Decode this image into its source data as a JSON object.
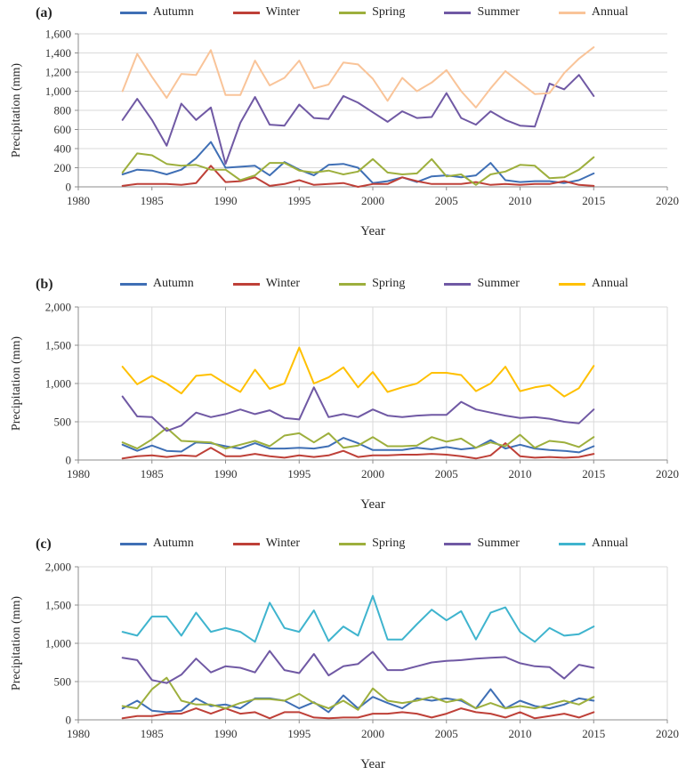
{
  "figure": {
    "panels": [
      {
        "label": "(a)",
        "ylabel": "Precipitation (mm)",
        "xlabel": "Year"
      },
      {
        "label": "(b)",
        "ylabel": "Precipitation (mm)",
        "xlabel": "Year"
      },
      {
        "label": "(c)",
        "ylabel": "Precipitation (mm)",
        "xlabel": "Year"
      }
    ]
  },
  "chart_data": [
    {
      "type": "line",
      "title": "(a)",
      "xlabel": "Year",
      "ylabel": "Precipitation (mm)",
      "xlim": [
        1980,
        2020
      ],
      "xticks": [
        1980,
        1985,
        1990,
        1995,
        2000,
        2005,
        2010,
        2015,
        2020
      ],
      "ylim": [
        0,
        1600
      ],
      "yticks": [
        0,
        200,
        400,
        600,
        800,
        1000,
        1200,
        1400,
        1600
      ],
      "ytick_labels": [
        "0",
        "200",
        "400",
        "600",
        "800",
        "1,000",
        "1,200",
        "1,400",
        "1,600"
      ],
      "grid": "horizontal",
      "legend_position": "top",
      "x": [
        1983,
        1984,
        1985,
        1986,
        1987,
        1988,
        1989,
        1990,
        1991,
        1992,
        1993,
        1994,
        1995,
        1996,
        1997,
        1998,
        1999,
        2000,
        2001,
        2002,
        2003,
        2004,
        2005,
        2006,
        2007,
        2008,
        2009,
        2010,
        2011,
        2012,
        2013,
        2014,
        2015
      ],
      "series": [
        {
          "name": "Autumn",
          "color": "#3F6FB5",
          "values": [
            130,
            180,
            170,
            130,
            180,
            300,
            470,
            200,
            210,
            220,
            120,
            260,
            180,
            120,
            230,
            240,
            200,
            40,
            60,
            100,
            50,
            110,
            120,
            100,
            120,
            250,
            70,
            50,
            60,
            60,
            40,
            70,
            140
          ]
        },
        {
          "name": "Winter",
          "color": "#BE4038",
          "values": [
            10,
            30,
            30,
            30,
            20,
            40,
            220,
            50,
            60,
            100,
            10,
            30,
            70,
            20,
            30,
            40,
            0,
            30,
            30,
            100,
            60,
            30,
            30,
            30,
            50,
            20,
            30,
            20,
            30,
            30,
            60,
            20,
            10
          ]
        },
        {
          "name": "Spring",
          "color": "#9DAF3D",
          "values": [
            150,
            350,
            330,
            240,
            220,
            230,
            180,
            180,
            70,
            120,
            250,
            250,
            170,
            150,
            170,
            130,
            160,
            290,
            150,
            130,
            140,
            290,
            110,
            130,
            20,
            130,
            160,
            230,
            220,
            90,
            100,
            180,
            310
          ]
        },
        {
          "name": "Summer",
          "color": "#7059A4",
          "values": [
            700,
            920,
            700,
            430,
            870,
            700,
            830,
            240,
            670,
            940,
            650,
            640,
            860,
            720,
            710,
            950,
            880,
            780,
            680,
            790,
            720,
            730,
            980,
            720,
            650,
            790,
            700,
            640,
            630,
            1080,
            1020,
            1170,
            950
          ]
        },
        {
          "name": "Annual",
          "color": "#F9C499",
          "values": [
            1000,
            1390,
            1150,
            930,
            1180,
            1170,
            1430,
            960,
            960,
            1320,
            1060,
            1140,
            1320,
            1030,
            1070,
            1300,
            1280,
            1130,
            900,
            1140,
            1000,
            1090,
            1220,
            1000,
            830,
            1030,
            1210,
            1090,
            970,
            980,
            1190,
            1340,
            1460
          ]
        }
      ]
    },
    {
      "type": "line",
      "title": "(b)",
      "xlabel": "Year",
      "ylabel": "Precipitation (mm)",
      "xlim": [
        1980,
        2020
      ],
      "xticks": [
        1980,
        1985,
        1990,
        1995,
        2000,
        2005,
        2010,
        2015,
        2020
      ],
      "ylim": [
        0,
        2000
      ],
      "yticks": [
        0,
        500,
        1000,
        1500,
        2000
      ],
      "ytick_labels": [
        "0",
        "500",
        "1,000",
        "1,500",
        "2,000"
      ],
      "grid": "both",
      "legend_position": "top",
      "x": [
        1983,
        1984,
        1985,
        1986,
        1987,
        1988,
        1989,
        1990,
        1991,
        1992,
        1993,
        1994,
        1995,
        1996,
        1997,
        1998,
        1999,
        2000,
        2001,
        2002,
        2003,
        2004,
        2005,
        2006,
        2007,
        2008,
        2009,
        2010,
        2011,
        2012,
        2013,
        2014,
        2015
      ],
      "series": [
        {
          "name": "Autumn",
          "color": "#3F6FB5",
          "values": [
            200,
            120,
            190,
            120,
            110,
            230,
            220,
            180,
            150,
            220,
            150,
            150,
            160,
            150,
            180,
            290,
            220,
            130,
            130,
            130,
            160,
            140,
            170,
            140,
            160,
            260,
            150,
            200,
            150,
            130,
            120,
            100,
            180
          ]
        },
        {
          "name": "Winter",
          "color": "#BE4038",
          "values": [
            20,
            50,
            60,
            40,
            60,
            50,
            160,
            50,
            50,
            80,
            50,
            30,
            60,
            40,
            60,
            120,
            40,
            60,
            60,
            70,
            70,
            80,
            70,
            50,
            20,
            60,
            220,
            50,
            30,
            40,
            30,
            40,
            80
          ]
        },
        {
          "name": "Spring",
          "color": "#9DAF3D",
          "values": [
            230,
            150,
            270,
            420,
            250,
            240,
            230,
            150,
            200,
            250,
            180,
            320,
            350,
            230,
            350,
            160,
            190,
            300,
            180,
            180,
            190,
            300,
            240,
            280,
            160,
            230,
            180,
            330,
            160,
            250,
            230,
            170,
            300
          ]
        },
        {
          "name": "Summer",
          "color": "#7059A4",
          "values": [
            830,
            570,
            560,
            380,
            450,
            620,
            560,
            600,
            660,
            600,
            650,
            550,
            530,
            950,
            560,
            600,
            560,
            660,
            580,
            560,
            580,
            590,
            590,
            760,
            660,
            620,
            580,
            550,
            560,
            540,
            500,
            480,
            660
          ]
        },
        {
          "name": "Annual",
          "color": "#FFC000",
          "values": [
            1220,
            990,
            1100,
            1000,
            870,
            1100,
            1120,
            1000,
            890,
            1180,
            930,
            1000,
            1470,
            1000,
            1080,
            1210,
            950,
            1150,
            890,
            950,
            1000,
            1140,
            1140,
            1110,
            900,
            1000,
            1220,
            900,
            950,
            980,
            830,
            940,
            1230
          ]
        }
      ]
    },
    {
      "type": "line",
      "title": "(c)",
      "xlabel": "Year",
      "ylabel": "Precipitation (mm)",
      "xlim": [
        1980,
        2020
      ],
      "xticks": [
        1980,
        1985,
        1990,
        1995,
        2000,
        2005,
        2010,
        2015,
        2020
      ],
      "ylim": [
        0,
        2000
      ],
      "yticks": [
        0,
        500,
        1000,
        1500,
        2000
      ],
      "ytick_labels": [
        "0",
        "500",
        "1,000",
        "1,500",
        "2,000"
      ],
      "grid": "both",
      "legend_position": "top",
      "x": [
        1983,
        1984,
        1985,
        1986,
        1987,
        1988,
        1989,
        1990,
        1991,
        1992,
        1993,
        1994,
        1995,
        1996,
        1997,
        1998,
        1999,
        2000,
        2001,
        2002,
        2003,
        2004,
        2005,
        2006,
        2007,
        2008,
        2009,
        2010,
        2011,
        2012,
        2013,
        2014,
        2015
      ],
      "series": [
        {
          "name": "Autumn",
          "color": "#3F6FB5",
          "values": [
            150,
            250,
            120,
            100,
            120,
            280,
            180,
            200,
            150,
            280,
            280,
            250,
            150,
            230,
            100,
            320,
            150,
            300,
            220,
            150,
            280,
            250,
            280,
            250,
            150,
            400,
            150,
            250,
            180,
            150,
            200,
            280,
            250
          ]
        },
        {
          "name": "Winter",
          "color": "#BE4038",
          "values": [
            20,
            50,
            50,
            80,
            80,
            150,
            80,
            150,
            80,
            100,
            20,
            100,
            100,
            30,
            20,
            30,
            30,
            80,
            80,
            100,
            80,
            30,
            80,
            150,
            100,
            80,
            30,
            100,
            20,
            50,
            80,
            30,
            100
          ]
        },
        {
          "name": "Spring",
          "color": "#9DAF3D",
          "values": [
            180,
            150,
            400,
            550,
            250,
            200,
            200,
            150,
            220,
            270,
            270,
            250,
            340,
            220,
            150,
            250,
            130,
            410,
            250,
            220,
            250,
            300,
            230,
            270,
            150,
            220,
            150,
            180,
            150,
            200,
            250,
            200,
            300
          ]
        },
        {
          "name": "Summer",
          "color": "#7059A4",
          "values": [
            810,
            780,
            520,
            480,
            590,
            800,
            620,
            700,
            680,
            620,
            900,
            650,
            610,
            860,
            580,
            700,
            730,
            890,
            650,
            650,
            700,
            750,
            770,
            780,
            800,
            810,
            820,
            740,
            700,
            690,
            540,
            720,
            680
          ]
        },
        {
          "name": "Annual",
          "color": "#3FB4CE",
          "values": [
            1150,
            1100,
            1350,
            1350,
            1100,
            1400,
            1150,
            1200,
            1150,
            1020,
            1530,
            1200,
            1150,
            1430,
            1030,
            1220,
            1100,
            1620,
            1050,
            1050,
            1250,
            1440,
            1300,
            1420,
            1050,
            1400,
            1470,
            1150,
            1020,
            1200,
            1100,
            1120,
            1220
          ]
        }
      ]
    }
  ]
}
